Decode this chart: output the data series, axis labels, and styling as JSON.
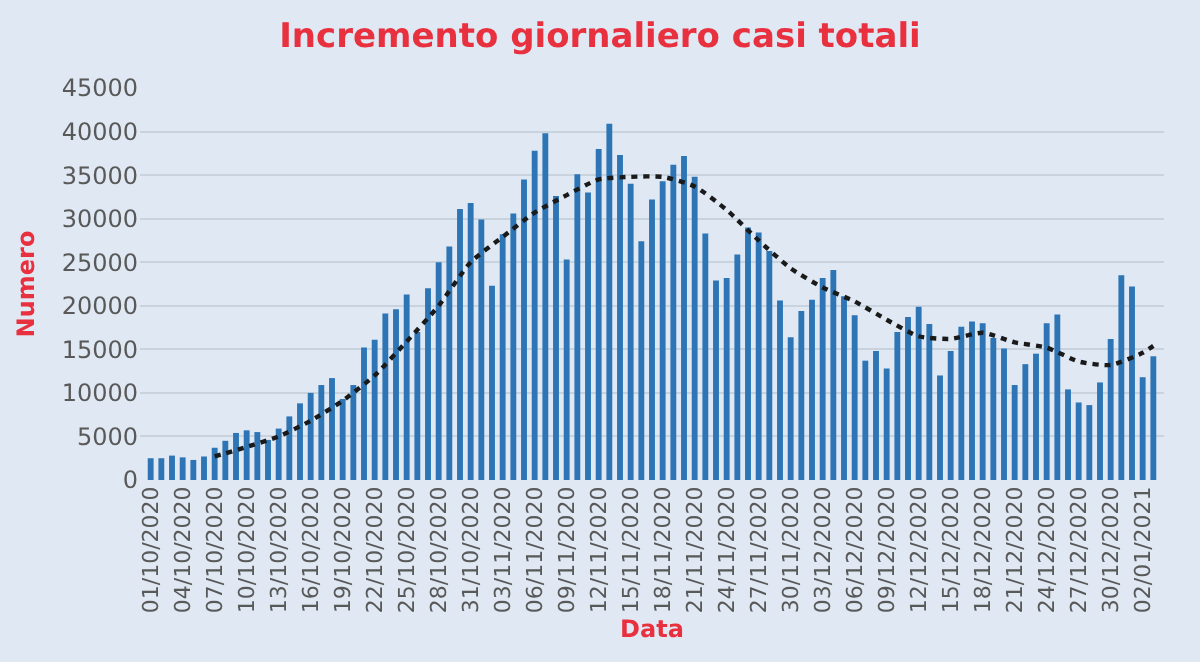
{
  "chart_data": {
    "type": "bar",
    "title": "Incremento giornaliero casi totali",
    "xlabel": "Data",
    "ylabel": "Numero",
    "x": [
      "2020-10-01",
      "2020-10-02",
      "2020-10-03",
      "2020-10-04",
      "2020-10-05",
      "2020-10-06",
      "2020-10-07",
      "2020-10-08",
      "2020-10-09",
      "2020-10-10",
      "2020-10-11",
      "2020-10-12",
      "2020-10-13",
      "2020-10-14",
      "2020-10-15",
      "2020-10-16",
      "2020-10-17",
      "2020-10-18",
      "2020-10-19",
      "2020-10-20",
      "2020-10-21",
      "2020-10-22",
      "2020-10-23",
      "2020-10-24",
      "2020-10-25",
      "2020-10-26",
      "2020-10-27",
      "2020-10-28",
      "2020-10-29",
      "2020-10-30",
      "2020-10-31",
      "2020-11-01",
      "2020-11-02",
      "2020-11-03",
      "2020-11-04",
      "2020-11-05",
      "2020-11-06",
      "2020-11-07",
      "2020-11-08",
      "2020-11-09",
      "2020-11-10",
      "2020-11-11",
      "2020-11-12",
      "2020-11-13",
      "2020-11-14",
      "2020-11-15",
      "2020-11-16",
      "2020-11-17",
      "2020-11-18",
      "2020-11-19",
      "2020-11-20",
      "2020-11-21",
      "2020-11-22",
      "2020-11-23",
      "2020-11-24",
      "2020-11-25",
      "2020-11-26",
      "2020-11-27",
      "2020-11-28",
      "2020-11-29",
      "2020-11-30",
      "2020-12-01",
      "2020-12-02",
      "2020-12-03",
      "2020-12-04",
      "2020-12-05",
      "2020-12-06",
      "2020-12-07",
      "2020-12-08",
      "2020-12-09",
      "2020-12-10",
      "2020-12-11",
      "2020-12-12",
      "2020-12-13",
      "2020-12-14",
      "2020-12-15",
      "2020-12-16",
      "2020-12-17",
      "2020-12-18",
      "2020-12-19",
      "2020-12-20",
      "2020-12-21",
      "2020-12-22",
      "2020-12-23",
      "2020-12-24",
      "2020-12-25",
      "2020-12-26",
      "2020-12-27",
      "2020-12-28",
      "2020-12-29",
      "2020-12-30",
      "2020-12-31",
      "2021-01-01",
      "2021-01-02",
      "2021-01-03"
    ],
    "series": [
      {
        "color": "#2e75b6",
        "values": [
          2500,
          2500,
          2800,
          2600,
          2300,
          2700,
          3700,
          4500,
          5400,
          5700,
          5500,
          4600,
          5900,
          7300,
          8800,
          10000,
          10900,
          11700,
          9300,
          10900,
          15200,
          16100,
          19100,
          19600,
          21300,
          17000,
          22000,
          25000,
          26800,
          31100,
          31800,
          29900,
          22300,
          28200,
          30600,
          34500,
          37800,
          39800,
          32600,
          25300,
          35100,
          33000,
          38000,
          40900,
          37300,
          34000,
          27400,
          32200,
          34300,
          36200,
          37200,
          34800,
          28300,
          22900,
          23200,
          25900,
          29000,
          28400,
          26300,
          20600,
          16400,
          19400,
          20700,
          23200,
          24100,
          21100,
          18900,
          13700,
          14800,
          12800,
          17000,
          18700,
          19900,
          17900,
          12000,
          14800,
          17600,
          18200,
          18000,
          16300,
          15100,
          10900,
          13300,
          14500,
          18000,
          19000,
          10400,
          8900,
          8600,
          11200,
          16200,
          23500,
          22200,
          11800,
          14200
        ]
      },
      {
        "type": "line",
        "color": "#1a1a1a",
        "line_style": "dotted",
        "marker": "none",
        "x": [
          "2020-10-07",
          "2020-10-10",
          "2020-10-13",
          "2020-10-16",
          "2020-10-19",
          "2020-10-22",
          "2020-10-25",
          "2020-10-28",
          "2020-10-31",
          "2020-11-03",
          "2020-11-06",
          "2020-11-09",
          "2020-11-12",
          "2020-11-15",
          "2020-11-18",
          "2020-11-21",
          "2020-11-24",
          "2020-11-27",
          "2020-11-30",
          "2020-12-03",
          "2020-12-06",
          "2020-12-09",
          "2020-12-12",
          "2020-12-15",
          "2020-12-18",
          "2020-12-21",
          "2020-12-24",
          "2020-12-27",
          "2020-12-30",
          "2021-01-02",
          "2021-01-03"
        ],
        "values": [
          2700,
          3800,
          5000,
          6800,
          9100,
          12000,
          15900,
          20000,
          25000,
          27900,
          30700,
          32700,
          34500,
          34800,
          34800,
          33700,
          31000,
          27500,
          24300,
          22100,
          20500,
          18400,
          16500,
          16200,
          16900,
          15800,
          15200,
          13600,
          13200,
          14600,
          15400
        ]
      }
    ],
    "xlim": [
      "2020-09-30",
      "2021-01-04"
    ],
    "xticks": [
      {
        "value": "2020-10-01",
        "label": "01/10/2020"
      },
      {
        "value": "2020-10-04",
        "label": "04/10/2020"
      },
      {
        "value": "2020-10-07",
        "label": "07/10/2020"
      },
      {
        "value": "2020-10-10",
        "label": "10/10/2020"
      },
      {
        "value": "2020-10-13",
        "label": "13/10/2020"
      },
      {
        "value": "2020-10-16",
        "label": "16/10/2020"
      },
      {
        "value": "2020-10-19",
        "label": "19/10/2020"
      },
      {
        "value": "2020-10-22",
        "label": "22/10/2020"
      },
      {
        "value": "2020-10-25",
        "label": "25/10/2020"
      },
      {
        "value": "2020-10-28",
        "label": "28/10/2020"
      },
      {
        "value": "2020-10-31",
        "label": "31/10/2020"
      },
      {
        "value": "2020-11-03",
        "label": "03/11/2020"
      },
      {
        "value": "2020-11-06",
        "label": "06/11/2020"
      },
      {
        "value": "2020-11-09",
        "label": "09/11/2020"
      },
      {
        "value": "2020-11-12",
        "label": "12/11/2020"
      },
      {
        "value": "2020-11-15",
        "label": "15/11/2020"
      },
      {
        "value": "2020-11-18",
        "label": "18/11/2020"
      },
      {
        "value": "2020-11-21",
        "label": "21/11/2020"
      },
      {
        "value": "2020-11-24",
        "label": "24/11/2020"
      },
      {
        "value": "2020-11-27",
        "label": "27/11/2020"
      },
      {
        "value": "2020-11-30",
        "label": "30/11/2020"
      },
      {
        "value": "2020-12-03",
        "label": "03/12/2020"
      },
      {
        "value": "2020-12-06",
        "label": "06/12/2020"
      },
      {
        "value": "2020-12-09",
        "label": "09/12/2020"
      },
      {
        "value": "2020-12-12",
        "label": "12/12/2020"
      },
      {
        "value": "2020-12-15",
        "label": "15/12/2020"
      },
      {
        "value": "2020-12-18",
        "label": "18/12/2020"
      },
      {
        "value": "2020-12-21",
        "label": "21/12/2020"
      },
      {
        "value": "2020-12-24",
        "label": "24/12/2020"
      },
      {
        "value": "2020-12-27",
        "label": "27/12/2020"
      },
      {
        "value": "2020-12-30",
        "label": "30/12/2020"
      },
      {
        "value": "2021-01-02",
        "label": "02/01/2021"
      }
    ],
    "ylim": [
      0,
      45000
    ],
    "yticks": [
      0,
      5000,
      10000,
      15000,
      20000,
      25000,
      30000,
      35000,
      40000,
      45000
    ],
    "grid": "y"
  }
}
